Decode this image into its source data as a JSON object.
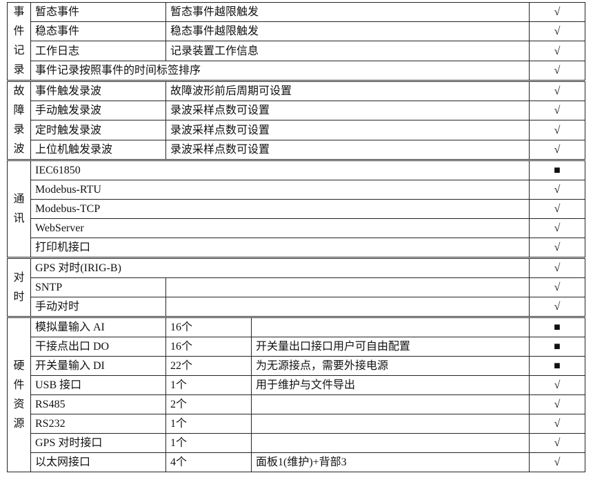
{
  "sections": [
    {
      "title": [
        "事",
        "件",
        "记",
        "录"
      ],
      "rows": [
        {
          "name": "暂态事件",
          "desc": "暂态事件越限触发",
          "mark": "√",
          "layout": "name-desc"
        },
        {
          "name": "稳态事件",
          "desc": "稳态事件越限触发",
          "mark": "√",
          "layout": "name-desc"
        },
        {
          "name": "工作日志",
          "desc": "记录装置工作信息",
          "mark": "√",
          "layout": "name-desc"
        },
        {
          "name": "事件记录按照事件的时间标签排序",
          "mark": "√",
          "layout": "full"
        }
      ]
    },
    {
      "title": [
        "故",
        "障",
        "录",
        "波"
      ],
      "rows": [
        {
          "name": "事件触发录波",
          "desc": "故障波形前后周期可设置",
          "mark": "√",
          "layout": "name-desc"
        },
        {
          "name": "手动触发录波",
          "desc": "录波采样点数可设置",
          "mark": "√",
          "layout": "name-desc"
        },
        {
          "name": "定时触发录波",
          "desc": "录波采样点数可设置",
          "mark": "√",
          "layout": "name-desc"
        },
        {
          "name": "上位机触发录波",
          "desc": "录波采样点数可设置",
          "mark": "√",
          "layout": "name-desc"
        }
      ]
    },
    {
      "title": [
        "通",
        "讯"
      ],
      "rows": [
        {
          "name": "IEC61850",
          "mark": "■",
          "layout": "full"
        },
        {
          "name": "Modebus-RTU",
          "mark": "√",
          "layout": "full"
        },
        {
          "name": "Modebus-TCP",
          "mark": "√",
          "layout": "full"
        },
        {
          "name": "WebServer",
          "mark": "√",
          "layout": "full"
        },
        {
          "name": "打印机接口",
          "mark": "√",
          "layout": "full"
        }
      ]
    },
    {
      "title": [
        "对",
        "时"
      ],
      "rows": [
        {
          "name": "GPS 对时(IRIG-B)",
          "mark": "√",
          "layout": "full"
        },
        {
          "name": "SNTP",
          "desc": "",
          "mark": "√",
          "layout": "name-desc"
        },
        {
          "name": "手动对时",
          "desc": "",
          "mark": "√",
          "layout": "name-desc"
        }
      ]
    },
    {
      "title": [
        "硬",
        "件",
        "资",
        "源"
      ],
      "rows": [
        {
          "name": "模拟量输入 AI",
          "count": "16个",
          "desc": "",
          "mark": "■",
          "layout": "three"
        },
        {
          "name": "干接点出口 DO",
          "count": "16个",
          "desc": "开关量出口接口用户可自由配置",
          "mark": "■",
          "layout": "three"
        },
        {
          "name": "开关量输入 DI",
          "count": "22个",
          "desc": "为无源接点，需要外接电源",
          "mark": "■",
          "layout": "three"
        },
        {
          "name": "USB 接口",
          "count": "1个",
          "desc": "用于维护与文件导出",
          "mark": "√",
          "layout": "three"
        },
        {
          "name": "RS485",
          "count": "2个",
          "desc": "",
          "mark": "√",
          "layout": "three"
        },
        {
          "name": "RS232",
          "count": "1个",
          "desc": "",
          "mark": "√",
          "layout": "three"
        },
        {
          "name": "GPS 对时接口",
          "count": "1个",
          "desc": "",
          "mark": "√",
          "layout": "three"
        },
        {
          "name": "以太网接口",
          "count": "4个",
          "desc": "面板1(维护)+背部3",
          "mark": "√",
          "layout": "three"
        }
      ]
    }
  ]
}
